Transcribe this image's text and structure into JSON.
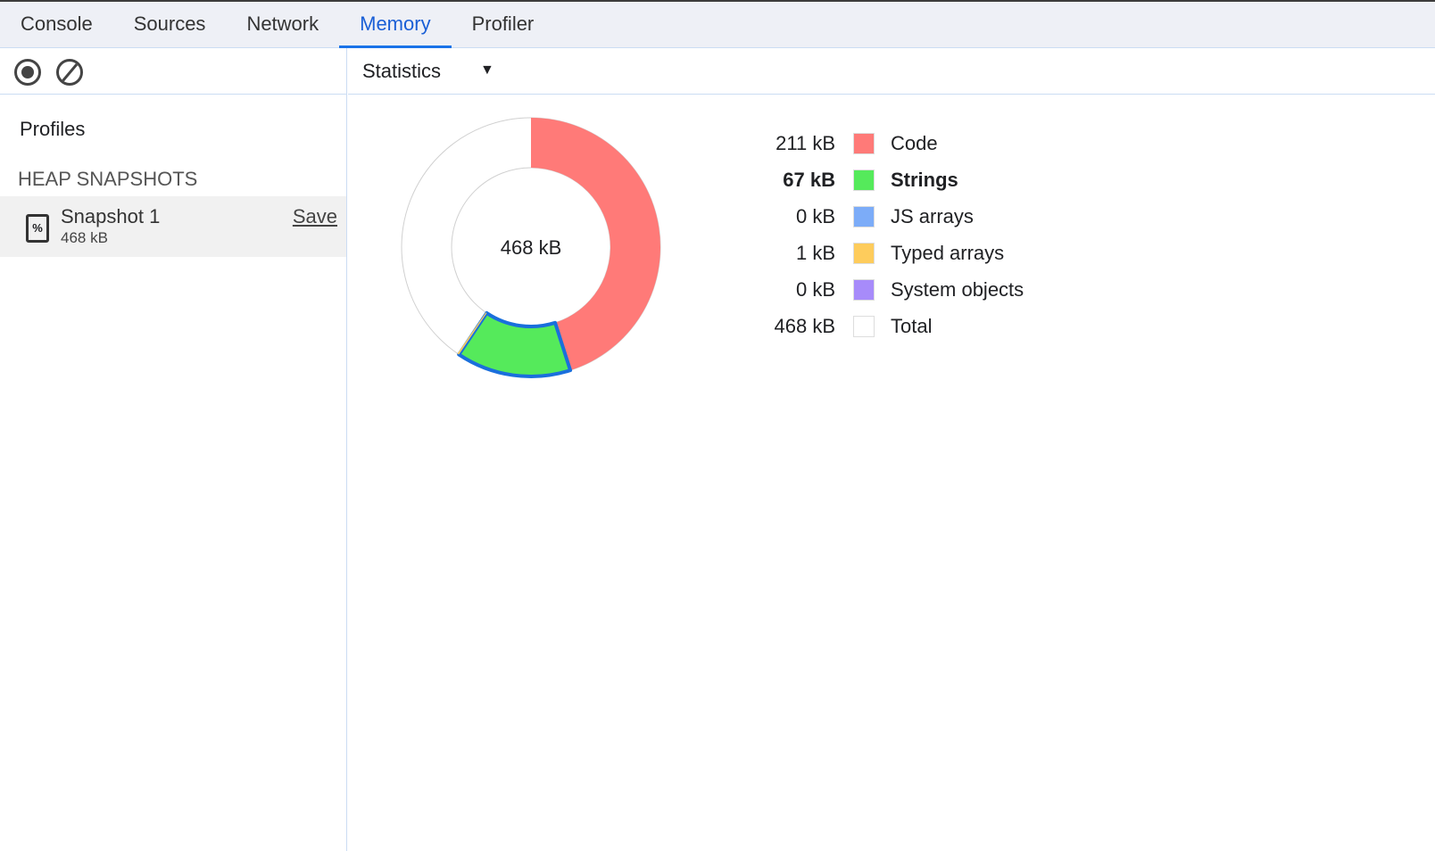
{
  "tabs": [
    {
      "label": "Console"
    },
    {
      "label": "Sources"
    },
    {
      "label": "Network"
    },
    {
      "label": "Memory",
      "active": true
    },
    {
      "label": "Profiler"
    }
  ],
  "sidebar": {
    "record_icon": "record-icon",
    "clear_icon": "clear-icon",
    "profiles_title": "Profiles",
    "section_title": "HEAP SNAPSHOTS",
    "snapshot": {
      "name": "Snapshot 1",
      "size": "468 kB",
      "save_label": "Save",
      "icon": "heap-snapshot-file-icon"
    }
  },
  "view": {
    "selected": "Statistics"
  },
  "chart_data": {
    "type": "pie",
    "total_label": "468 kB",
    "total": 468,
    "unit": "kB",
    "slices": [
      {
        "name": "Code",
        "value": 211,
        "label": "211 kB",
        "color": "#ff7a78"
      },
      {
        "name": "Strings",
        "value": 67,
        "label": "67 kB",
        "color": "#55ea5b",
        "highlighted": true
      },
      {
        "name": "JS arrays",
        "value": 0,
        "label": "0 kB",
        "color": "#7cacf8"
      },
      {
        "name": "Typed arrays",
        "value": 1,
        "label": "1 kB",
        "color": "#fecc5c"
      },
      {
        "name": "System objects",
        "value": 0,
        "label": "0 kB",
        "color": "#a78bfa"
      },
      {
        "name": "Total",
        "value": 468,
        "label": "468 kB",
        "color": "#ffffff"
      }
    ]
  }
}
